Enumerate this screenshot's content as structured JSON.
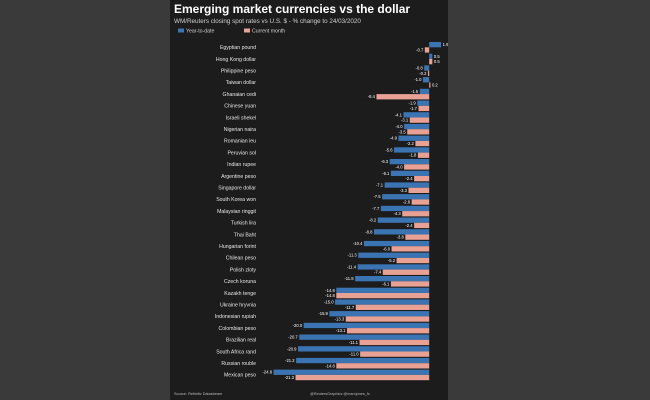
{
  "chart_data": {
    "type": "bar",
    "orientation": "horizontal",
    "title": "Emerging market currencies vs the dollar",
    "subtitle": "WM/Reuters closing spot rates vs U.S. $ - % change to 24/03/2020",
    "legend_position": "top-left",
    "categories": [
      "Egyptian pound",
      "Hong Kong dollar",
      "Philippine peso",
      "Taiwan dollar",
      "Ghanaian cedi",
      "Chinese yuan",
      "Israeli shekel",
      "Nigerian naira",
      "Romanian leu",
      "Peruvian sol",
      "Indian rupee",
      "Argentine peso",
      "Singapore dollar",
      "South Korea won",
      "Malaysian ringgit",
      "Turkish lira",
      "Thai Baht",
      "Hungarian forint",
      "Chilean peso",
      "Polish zloty",
      "Czech koruna",
      "Kazakh tenge",
      "Ukraine hryvnia",
      "Indonesian rupiah",
      "Colombian peso",
      "Brazilian real",
      "South Africa rand",
      "Russian rouble",
      "Mexican peso"
    ],
    "series": [
      {
        "name": "Year-to-date",
        "color": "#3a74b2",
        "values": [
          1.9,
          0.5,
          -0.8,
          -1.0,
          -1.5,
          -1.9,
          -4.1,
          -4.0,
          -4.9,
          -5.6,
          -6.3,
          -6.1,
          -7.1,
          -7.5,
          -7.7,
          -8.2,
          -8.8,
          -10.4,
          -11.3,
          -11.4,
          -11.8,
          -14.8,
          -15.0,
          -15.9,
          -20.0,
          -20.7,
          -20.9,
          -21.2,
          -24.8
        ]
      },
      {
        "name": "Current month",
        "color": "#e9a193",
        "values": [
          -0.7,
          0.5,
          -0.2,
          0.2,
          -8.4,
          -1.7,
          -3.1,
          -3.5,
          -2.2,
          -1.8,
          -4.0,
          -2.4,
          -3.3,
          -2.8,
          -4.3,
          -2.4,
          -3.8,
          -6.0,
          -5.2,
          -7.4,
          -6.1,
          -14.8,
          -11.7,
          -13.3,
          -13.1,
          -11.1,
          -11.0,
          -14.8,
          -21.3
        ]
      }
    ],
    "xlim": [
      -26,
      2.2
    ],
    "grid": false
  },
  "footer": {
    "source": "Source: Refinitiv Datastream",
    "credit": "@ReutersGraphics @marcjones_fx"
  }
}
